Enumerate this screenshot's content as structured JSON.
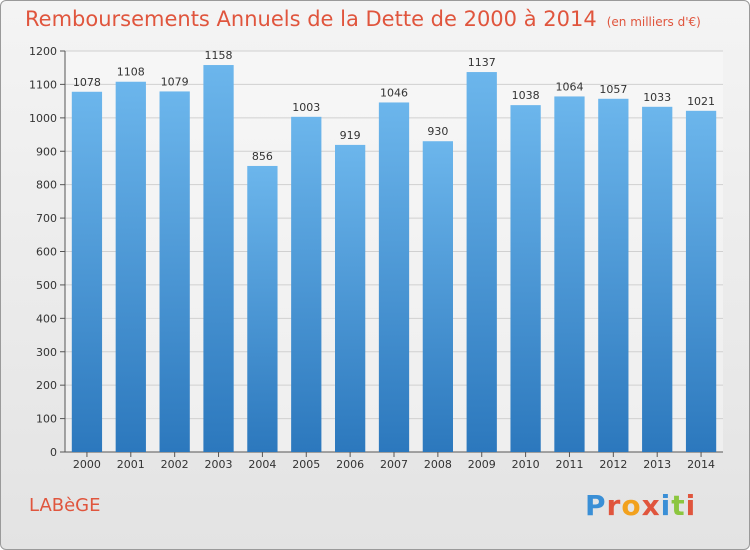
{
  "title": "Remboursements Annuels de la Dette de 2000 à 2014",
  "unit_note": "(en milliers d'€)",
  "commune": "LABèGE",
  "brand": {
    "text": "Proxiti",
    "letters": [
      "P",
      "r",
      "o",
      "x",
      "i",
      "t",
      "i"
    ],
    "colors": [
      "#3a8fd6",
      "#e0553d",
      "#f2a11d",
      "#e0553d",
      "#3a8fd6",
      "#8cc63f",
      "#e0553d"
    ]
  },
  "colors": {
    "title": "#e0553d",
    "bar_top": "#6cb6ec",
    "bar_bottom": "#2c78bd",
    "grid": "#d0d0d0"
  },
  "chart_data": {
    "type": "bar",
    "categories": [
      "2000",
      "2001",
      "2002",
      "2003",
      "2004",
      "2005",
      "2006",
      "2007",
      "2008",
      "2009",
      "2010",
      "2011",
      "2012",
      "2013",
      "2014"
    ],
    "values": [
      1078,
      1108,
      1079,
      1158,
      856,
      1003,
      919,
      1046,
      930,
      1137,
      1038,
      1064,
      1057,
      1033,
      1021
    ],
    "ylim": [
      0,
      1200
    ],
    "ytick_step": 100,
    "grid": true,
    "data_labels": true
  }
}
